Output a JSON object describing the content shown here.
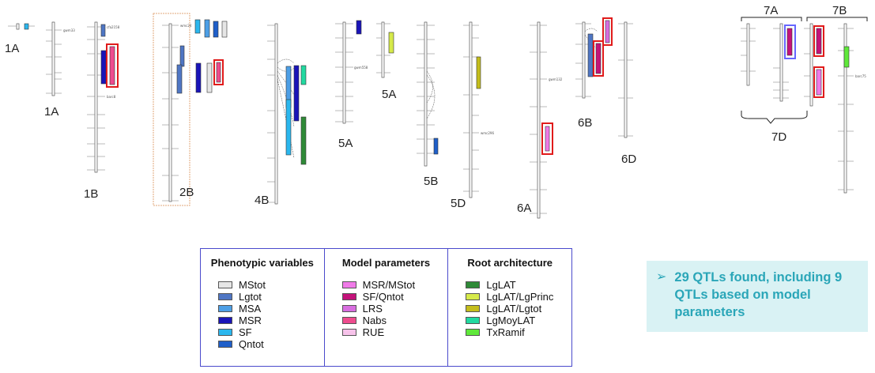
{
  "chromosome_labels": {
    "c1A_left": "1A",
    "c1A_right": "1A",
    "c1B": "1B",
    "c2B": "2B",
    "c4B": "4B",
    "c5A_top": "5A",
    "c5A_bottom": "5A",
    "c5B": "5B",
    "c5D": "5D",
    "c6A": "6A",
    "c6B": "6B",
    "c6D": "6D",
    "c7A": "7A",
    "c7B": "7B",
    "c7D": "7D"
  },
  "marker_text": {
    "m1": "gwm33",
    "m2": "cfa2158",
    "m3": "barc8",
    "m4": "wmc24",
    "m5": "gwm558",
    "m6": "wmc296",
    "m7": "gwm132",
    "m8": "barc75"
  },
  "legend": {
    "phenotypic": {
      "title": "Phenotypic variables",
      "items": [
        {
          "label": "MStot",
          "color": "#e6e6e6"
        },
        {
          "label": "Lgtot",
          "color": "#4f76c4"
        },
        {
          "label": "MSA",
          "color": "#4d9fe6"
        },
        {
          "label": "MSR",
          "color": "#1a14b8"
        },
        {
          "label": "SF",
          "color": "#2bb7ee"
        },
        {
          "label": "Qntot",
          "color": "#1f5fc9"
        }
      ]
    },
    "model": {
      "title": "Model parameters",
      "items": [
        {
          "label": "MSR/MStot",
          "color": "#f07ae8"
        },
        {
          "label": "SF/Qntot",
          "color": "#c4127a"
        },
        {
          "label": "LRS",
          "color": "#d86ee0"
        },
        {
          "label": "Nabs",
          "color": "#ee4c8e"
        },
        {
          "label": "RUE",
          "color": "#f7c3ea"
        }
      ]
    },
    "root": {
      "title": "Root architecture",
      "items": [
        {
          "label": "LgLAT",
          "color": "#2f8a37"
        },
        {
          "label": "LgLAT/LgPrinc",
          "color": "#d6ea4a"
        },
        {
          "label": "LgLAT/Lgtot",
          "color": "#c4bd1c"
        },
        {
          "label": "LgMoyLAT",
          "color": "#22d9a0"
        },
        {
          "label": "TxRamif",
          "color": "#5fe83a"
        }
      ]
    }
  },
  "callout": {
    "arrow": "➢",
    "text": "29 QTLs found, including 9 QTLs based on model parameters"
  }
}
